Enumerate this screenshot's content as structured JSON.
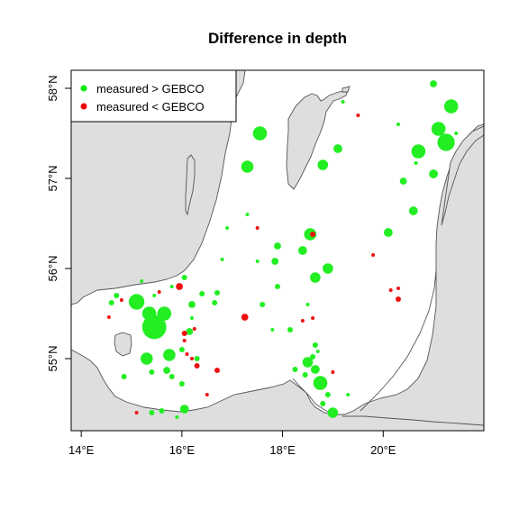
{
  "chart_data": {
    "type": "scatter",
    "title": "Difference in depth",
    "xlim": [
      13.8,
      22.0
    ],
    "ylim": [
      54.2,
      58.2
    ],
    "x_ticks": [
      {
        "value": 14,
        "label": "14°E"
      },
      {
        "value": 16,
        "label": "16°E"
      },
      {
        "value": 18,
        "label": "18°E"
      },
      {
        "value": 20,
        "label": "20°E"
      }
    ],
    "y_ticks": [
      {
        "value": 55,
        "label": "55°N"
      },
      {
        "value": 56,
        "label": "56°N"
      },
      {
        "value": 57,
        "label": "57°N"
      },
      {
        "value": 58,
        "label": "58°N"
      }
    ],
    "legend": {
      "position": "top-left",
      "entries": [
        {
          "label": "measured > GEBCO",
          "color": "#00ee00"
        },
        {
          "label": "measured < GEBCO",
          "color": "#ee0000"
        }
      ]
    },
    "colors": {
      "positive": "#22ee22",
      "negative": "#ee1111",
      "land": "#dedede",
      "coast": "#555555"
    },
    "series": [
      {
        "name": "measured > GEBCO",
        "color": "#22ee22",
        "points": [
          {
            "lon": 21.0,
            "lat": 58.05,
            "size": 3
          },
          {
            "lon": 21.35,
            "lat": 57.8,
            "size": 7
          },
          {
            "lon": 21.1,
            "lat": 57.55,
            "size": 7
          },
          {
            "lon": 21.25,
            "lat": 57.4,
            "size": 9
          },
          {
            "lon": 20.7,
            "lat": 57.3,
            "size": 7
          },
          {
            "lon": 21.45,
            "lat": 57.5,
            "size": 1
          },
          {
            "lon": 20.65,
            "lat": 57.17,
            "size": 1
          },
          {
            "lon": 21.0,
            "lat": 57.05,
            "size": 4
          },
          {
            "lon": 20.4,
            "lat": 56.97,
            "size": 3
          },
          {
            "lon": 20.6,
            "lat": 56.64,
            "size": 4
          },
          {
            "lon": 20.1,
            "lat": 56.4,
            "size": 4
          },
          {
            "lon": 19.1,
            "lat": 57.33,
            "size": 4
          },
          {
            "lon": 18.8,
            "lat": 57.15,
            "size": 5
          },
          {
            "lon": 17.55,
            "lat": 57.5,
            "size": 7
          },
          {
            "lon": 17.3,
            "lat": 57.13,
            "size": 6
          },
          {
            "lon": 19.2,
            "lat": 57.85,
            "size": 1
          },
          {
            "lon": 18.55,
            "lat": 56.38,
            "size": 6
          },
          {
            "lon": 18.4,
            "lat": 56.2,
            "size": 4
          },
          {
            "lon": 17.9,
            "lat": 56.25,
            "size": 3
          },
          {
            "lon": 17.85,
            "lat": 56.08,
            "size": 3
          },
          {
            "lon": 18.9,
            "lat": 56.0,
            "size": 5
          },
          {
            "lon": 18.65,
            "lat": 55.9,
            "size": 5
          },
          {
            "lon": 17.5,
            "lat": 56.08,
            "size": 1
          },
          {
            "lon": 17.9,
            "lat": 55.8,
            "size": 2
          },
          {
            "lon": 17.6,
            "lat": 55.6,
            "size": 2
          },
          {
            "lon": 18.5,
            "lat": 55.6,
            "size": 1
          },
          {
            "lon": 18.15,
            "lat": 55.32,
            "size": 2
          },
          {
            "lon": 18.65,
            "lat": 55.15,
            "size": 2
          },
          {
            "lon": 18.7,
            "lat": 55.08,
            "size": 1
          },
          {
            "lon": 18.6,
            "lat": 55.02,
            "size": 2
          },
          {
            "lon": 18.5,
            "lat": 54.96,
            "size": 5
          },
          {
            "lon": 18.65,
            "lat": 54.88,
            "size": 4
          },
          {
            "lon": 18.45,
            "lat": 54.82,
            "size": 2
          },
          {
            "lon": 18.75,
            "lat": 54.73,
            "size": 7
          },
          {
            "lon": 18.9,
            "lat": 54.6,
            "size": 2
          },
          {
            "lon": 18.8,
            "lat": 54.5,
            "size": 2
          },
          {
            "lon": 19.0,
            "lat": 54.4,
            "size": 5
          },
          {
            "lon": 18.25,
            "lat": 54.88,
            "size": 2
          },
          {
            "lon": 15.1,
            "lat": 55.63,
            "size": 8
          },
          {
            "lon": 15.35,
            "lat": 55.5,
            "size": 7
          },
          {
            "lon": 15.65,
            "lat": 55.5,
            "size": 7
          },
          {
            "lon": 15.45,
            "lat": 55.35,
            "size": 13
          },
          {
            "lon": 15.3,
            "lat": 55.0,
            "size": 6
          },
          {
            "lon": 15.75,
            "lat": 55.04,
            "size": 6
          },
          {
            "lon": 15.7,
            "lat": 54.87,
            "size": 3
          },
          {
            "lon": 15.4,
            "lat": 54.85,
            "size": 2
          },
          {
            "lon": 15.8,
            "lat": 54.8,
            "size": 2
          },
          {
            "lon": 16.05,
            "lat": 54.44,
            "size": 4
          },
          {
            "lon": 16.15,
            "lat": 55.3,
            "size": 3
          },
          {
            "lon": 16.2,
            "lat": 55.6,
            "size": 3
          },
          {
            "lon": 16.05,
            "lat": 55.9,
            "size": 2
          },
          {
            "lon": 16.4,
            "lat": 55.72,
            "size": 2
          },
          {
            "lon": 16.7,
            "lat": 55.73,
            "size": 2
          },
          {
            "lon": 16.65,
            "lat": 55.62,
            "size": 2
          },
          {
            "lon": 14.7,
            "lat": 55.7,
            "size": 2
          },
          {
            "lon": 14.6,
            "lat": 55.62,
            "size": 2
          },
          {
            "lon": 15.2,
            "lat": 55.86,
            "size": 1
          },
          {
            "lon": 15.8,
            "lat": 55.8,
            "size": 1
          },
          {
            "lon": 15.45,
            "lat": 55.7,
            "size": 1
          },
          {
            "lon": 16.0,
            "lat": 54.72,
            "size": 2
          },
          {
            "lon": 15.6,
            "lat": 54.42,
            "size": 2
          },
          {
            "lon": 15.4,
            "lat": 54.4,
            "size": 2
          },
          {
            "lon": 15.9,
            "lat": 54.35,
            "size": 1
          },
          {
            "lon": 14.85,
            "lat": 54.8,
            "size": 2
          },
          {
            "lon": 16.3,
            "lat": 55.0,
            "size": 2
          },
          {
            "lon": 16.2,
            "lat": 55.45,
            "size": 1
          },
          {
            "lon": 16.0,
            "lat": 55.1,
            "size": 2
          },
          {
            "lon": 16.8,
            "lat": 56.1,
            "size": 1
          },
          {
            "lon": 16.9,
            "lat": 56.45,
            "size": 1
          },
          {
            "lon": 17.8,
            "lat": 55.32,
            "size": 1
          },
          {
            "lon": 19.3,
            "lat": 54.6,
            "size": 1
          },
          {
            "lon": 20.3,
            "lat": 57.6,
            "size": 1
          },
          {
            "lon": 17.3,
            "lat": 56.6,
            "size": 1
          }
        ]
      },
      {
        "name": "measured < GEBCO",
        "color": "#ee1111",
        "points": [
          {
            "lon": 17.25,
            "lat": 55.46,
            "size": 3
          },
          {
            "lon": 15.95,
            "lat": 55.8,
            "size": 3
          },
          {
            "lon": 16.05,
            "lat": 55.28,
            "size": 2
          },
          {
            "lon": 16.3,
            "lat": 54.92,
            "size": 2
          },
          {
            "lon": 16.7,
            "lat": 54.87,
            "size": 2
          },
          {
            "lon": 20.3,
            "lat": 55.66,
            "size": 2
          },
          {
            "lon": 20.15,
            "lat": 55.76,
            "size": 1
          },
          {
            "lon": 20.3,
            "lat": 55.78,
            "size": 1
          },
          {
            "lon": 18.6,
            "lat": 56.38,
            "size": 2
          },
          {
            "lon": 16.05,
            "lat": 55.2,
            "size": 1
          },
          {
            "lon": 16.25,
            "lat": 55.33,
            "size": 1
          },
          {
            "lon": 16.2,
            "lat": 55.0,
            "size": 1
          },
          {
            "lon": 14.55,
            "lat": 55.46,
            "size": 1
          },
          {
            "lon": 14.8,
            "lat": 55.65,
            "size": 1
          },
          {
            "lon": 15.55,
            "lat": 55.74,
            "size": 1
          },
          {
            "lon": 18.6,
            "lat": 55.45,
            "size": 1
          },
          {
            "lon": 18.4,
            "lat": 55.42,
            "size": 1
          },
          {
            "lon": 19.8,
            "lat": 56.15,
            "size": 1
          },
          {
            "lon": 19.5,
            "lat": 57.7,
            "size": 1
          },
          {
            "lon": 19.0,
            "lat": 54.85,
            "size": 1
          },
          {
            "lon": 16.1,
            "lat": 55.05,
            "size": 1
          },
          {
            "lon": 17.5,
            "lat": 56.45,
            "size": 1
          },
          {
            "lon": 15.1,
            "lat": 54.4,
            "size": 1
          },
          {
            "lon": 16.5,
            "lat": 54.6,
            "size": 1
          }
        ]
      }
    ]
  }
}
